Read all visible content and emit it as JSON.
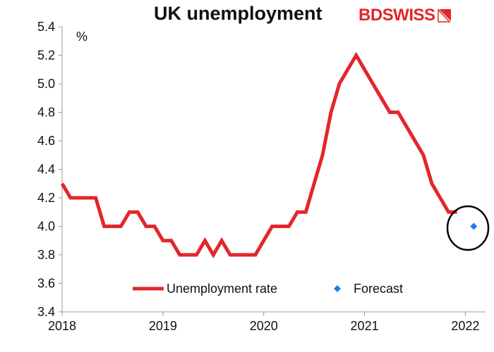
{
  "title": "UK unemployment",
  "logo_text_1": "BD",
  "logo_text_2": "SWISS",
  "colors": {
    "line": "#e3262b",
    "forecast": "#1a7fe8",
    "logo": "#e3262b"
  },
  "chart_data": {
    "type": "line",
    "unit": "%",
    "ylim": [
      3.4,
      5.4
    ],
    "yticks": [
      "3.4",
      "3.6",
      "3.8",
      "4.0",
      "4.2",
      "4.4",
      "4.6",
      "4.8",
      "5.0",
      "5.2",
      "5.4"
    ],
    "xlim": [
      2018.0,
      2022.2
    ],
    "xticks": [
      "2018",
      "2019",
      "2020",
      "2021",
      "2022"
    ],
    "series": [
      {
        "name": "Unemployment rate",
        "x": [
          2018.0,
          2018.083,
          2018.167,
          2018.25,
          2018.333,
          2018.417,
          2018.5,
          2018.583,
          2018.667,
          2018.75,
          2018.833,
          2018.917,
          2019.0,
          2019.083,
          2019.167,
          2019.25,
          2019.333,
          2019.417,
          2019.5,
          2019.583,
          2019.667,
          2019.75,
          2019.833,
          2019.917,
          2020.0,
          2020.083,
          2020.167,
          2020.25,
          2020.333,
          2020.417,
          2020.5,
          2020.583,
          2020.667,
          2020.75,
          2020.833,
          2020.917,
          2021.0,
          2021.083,
          2021.167,
          2021.25,
          2021.333,
          2021.417,
          2021.5,
          2021.583,
          2021.667,
          2021.75,
          2021.833,
          2021.917
        ],
        "y": [
          4.3,
          4.2,
          4.2,
          4.2,
          4.2,
          4.0,
          4.0,
          4.0,
          4.1,
          4.1,
          4.0,
          4.0,
          3.9,
          3.9,
          3.8,
          3.8,
          3.8,
          3.9,
          3.8,
          3.9,
          3.8,
          3.8,
          3.8,
          3.8,
          3.9,
          4.0,
          4.0,
          4.0,
          4.1,
          4.1,
          4.3,
          4.5,
          4.8,
          5.0,
          5.1,
          5.2,
          5.1,
          5.0,
          4.9,
          4.8,
          4.8,
          4.7,
          4.6,
          4.5,
          4.3,
          4.2,
          4.1,
          4.1
        ]
      },
      {
        "name": "Forecast",
        "x": [
          2022.083
        ],
        "y": [
          4.0
        ]
      }
    ],
    "legend_position": "bottom-center",
    "annotations": [
      "circle around forecast point"
    ]
  }
}
